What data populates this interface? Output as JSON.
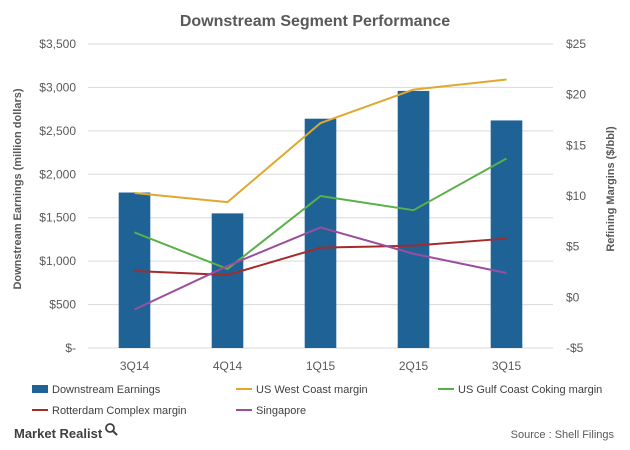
{
  "chart_data": {
    "type": "bar",
    "title": "Downstream Segment Performance",
    "categories": [
      "3Q14",
      "4Q14",
      "1Q15",
      "2Q15",
      "3Q15"
    ],
    "y_left": {
      "label": "Downstream Earnings (million dollars)",
      "ylim": [
        0,
        3500
      ],
      "ticks": [
        0,
        500,
        1000,
        1500,
        2000,
        2500,
        3000,
        3500
      ],
      "tick_labels": [
        "$-",
        "$500",
        "$1,000",
        "$1,500",
        "$2,000",
        "$2,500",
        "$3,000",
        "$3,500"
      ]
    },
    "y_right": {
      "label": "Refining Margins ($/bbl)",
      "ylim": [
        -5,
        25
      ],
      "ticks": [
        -5,
        0,
        5,
        10,
        15,
        20,
        25
      ],
      "tick_labels": [
        "-$5",
        "$0",
        "$5",
        "$10",
        "$15",
        "$20",
        "$25"
      ]
    },
    "grid": "horizontal",
    "legend_position": "bottom",
    "series": [
      {
        "name": "Downstream Earnings",
        "type": "bar",
        "axis": "left",
        "color": "#1f6296",
        "values": [
          1790,
          1550,
          2640,
          2960,
          2620
        ]
      },
      {
        "name": "US West Coast margin",
        "type": "line",
        "axis": "right",
        "color": "#e0a82e",
        "values": [
          10.3,
          9.4,
          17.2,
          20.5,
          21.5
        ]
      },
      {
        "name": "US Gulf Coast Coking margin",
        "type": "line",
        "axis": "right",
        "color": "#5ab04a",
        "values": [
          6.4,
          2.8,
          10.0,
          8.6,
          13.7
        ]
      },
      {
        "name": "Rotterdam Complex margin",
        "type": "line",
        "axis": "right",
        "color": "#a52a2a",
        "values": [
          2.6,
          2.2,
          4.9,
          5.1,
          5.8
        ]
      },
      {
        "name": "Singapore",
        "type": "line",
        "axis": "right",
        "color": "#9b4e9f",
        "values": [
          -1.2,
          3.1,
          6.9,
          4.3,
          2.4
        ]
      }
    ]
  },
  "footer": {
    "brand": "Market Realist",
    "brand_icon": "magnifier-icon",
    "source": "Source : Shell Filings"
  }
}
